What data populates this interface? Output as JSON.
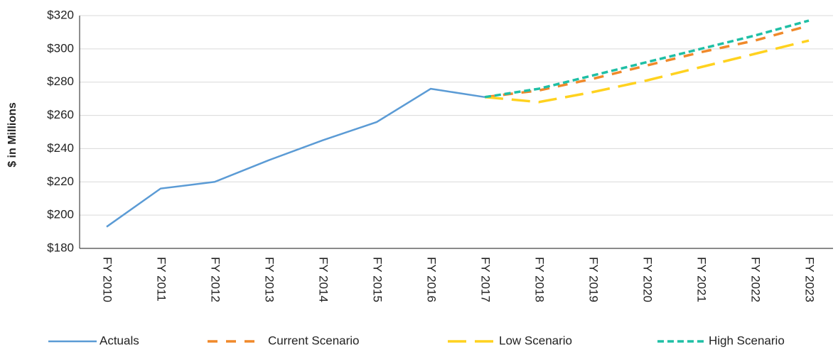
{
  "chart_data": {
    "type": "line",
    "y_label": "$ in Millions",
    "categories": [
      "FY 2010",
      "FY 2011",
      "FY 2012",
      "FY 2013",
      "FY 2014",
      "FY 2015",
      "FY 2016",
      "FY 2017",
      "FY 2018",
      "FY 2019",
      "FY 2020",
      "FY 2021",
      "FY 2022",
      "FY 2023"
    ],
    "series": [
      {
        "name": "Actuals",
        "color": "#5b9bd5",
        "values": [
          193,
          216,
          220,
          233,
          245,
          256,
          276,
          271,
          null,
          null,
          null,
          null,
          null,
          null
        ]
      },
      {
        "name": "Current Scenario",
        "color": "#f0892a",
        "values": [
          null,
          null,
          null,
          null,
          null,
          null,
          null,
          271,
          275,
          282,
          290,
          298,
          305,
          314
        ]
      },
      {
        "name": "Low Scenario",
        "color": "#ffd21f",
        "values": [
          null,
          null,
          null,
          null,
          null,
          null,
          null,
          271,
          268,
          274,
          281,
          289,
          297,
          305
        ]
      },
      {
        "name": "High Scenario",
        "color": "#1fbfa5",
        "values": [
          null,
          null,
          null,
          null,
          null,
          null,
          null,
          271,
          276,
          284,
          292,
          300,
          308,
          317
        ]
      }
    ],
    "ylim": [
      180,
      320
    ],
    "yticks": [
      {
        "value": 180,
        "label": "$180"
      },
      {
        "value": 200,
        "label": "$200"
      },
      {
        "value": 220,
        "label": "$220"
      },
      {
        "value": 240,
        "label": "$240"
      },
      {
        "value": 260,
        "label": "$260"
      },
      {
        "value": 280,
        "label": "$280"
      },
      {
        "value": 300,
        "label": "$300"
      },
      {
        "value": 320,
        "label": "$320"
      }
    ],
    "grid": true,
    "legend": "bottom"
  }
}
